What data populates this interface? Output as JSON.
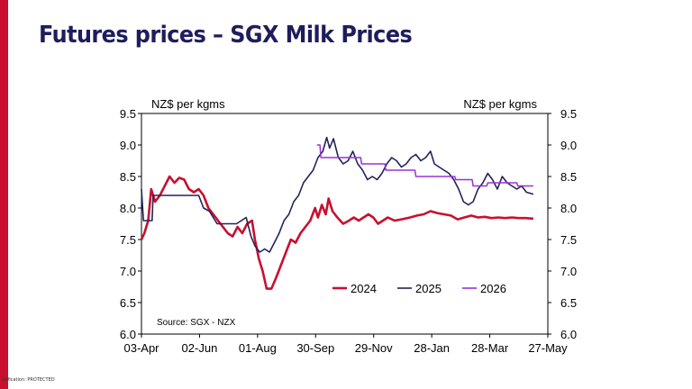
{
  "slide": {
    "title": "Futures prices – SGX Milk Prices",
    "classification": "ssification: PROTECTED"
  },
  "colors": {
    "accent": "#c8102e",
    "title": "#1f1d5c",
    "series_2024": "#c8102e",
    "series_2025": "#23235a",
    "series_2026": "#9b30d9"
  },
  "chart_data": {
    "type": "line",
    "y_left_label": "NZ$ per kgms",
    "y_right_label": "NZ$ per kgms",
    "ylim": [
      6.0,
      9.5
    ],
    "y_ticks": [
      "6.0",
      "6.5",
      "7.0",
      "7.5",
      "8.0",
      "8.5",
      "9.0",
      "9.5"
    ],
    "x_ticks": [
      "03-Apr",
      "02-Jun",
      "01-Aug",
      "30-Sep",
      "29-Nov",
      "28-Jan",
      "28-Mar",
      "27-May"
    ],
    "x_range": [
      "2024-04-03",
      "2025-05-27"
    ],
    "source": "Source: SGX - NZX",
    "legend_position": "bottom-right",
    "grid": false,
    "series": [
      {
        "name": "2024",
        "color": "#c8102e",
        "points": [
          [
            "2024-04-03",
            7.5
          ],
          [
            "2024-04-06",
            7.6
          ],
          [
            "2024-04-10",
            7.8
          ],
          [
            "2024-04-13",
            8.3
          ],
          [
            "2024-04-17",
            8.1
          ],
          [
            "2024-04-22",
            8.2
          ],
          [
            "2024-04-27",
            8.35
          ],
          [
            "2024-05-02",
            8.5
          ],
          [
            "2024-05-07",
            8.4
          ],
          [
            "2024-05-12",
            8.48
          ],
          [
            "2024-05-17",
            8.45
          ],
          [
            "2024-05-22",
            8.3
          ],
          [
            "2024-05-27",
            8.25
          ],
          [
            "2024-06-01",
            8.3
          ],
          [
            "2024-06-06",
            8.2
          ],
          [
            "2024-06-11",
            8.0
          ],
          [
            "2024-06-16",
            7.9
          ],
          [
            "2024-06-21",
            7.8
          ],
          [
            "2024-06-26",
            7.7
          ],
          [
            "2024-07-01",
            7.6
          ],
          [
            "2024-07-06",
            7.55
          ],
          [
            "2024-07-11",
            7.7
          ],
          [
            "2024-07-16",
            7.6
          ],
          [
            "2024-07-21",
            7.75
          ],
          [
            "2024-07-26",
            7.8
          ],
          [
            "2024-07-29",
            7.5
          ],
          [
            "2024-08-02",
            7.2
          ],
          [
            "2024-08-06",
            7.0
          ],
          [
            "2024-08-10",
            6.72
          ],
          [
            "2024-08-15",
            6.72
          ],
          [
            "2024-08-20",
            6.9
          ],
          [
            "2024-08-25",
            7.1
          ],
          [
            "2024-08-30",
            7.3
          ],
          [
            "2024-09-04",
            7.5
          ],
          [
            "2024-09-09",
            7.45
          ],
          [
            "2024-09-14",
            7.6
          ],
          [
            "2024-09-19",
            7.7
          ],
          [
            "2024-09-24",
            7.8
          ],
          [
            "2024-09-29",
            8.0
          ],
          [
            "2024-10-02",
            7.85
          ],
          [
            "2024-10-06",
            8.05
          ],
          [
            "2024-10-10",
            7.9
          ],
          [
            "2024-10-13",
            8.15
          ],
          [
            "2024-10-17",
            7.95
          ],
          [
            "2024-10-22",
            7.85
          ],
          [
            "2024-10-28",
            7.75
          ],
          [
            "2024-11-03",
            7.8
          ],
          [
            "2024-11-08",
            7.85
          ],
          [
            "2024-11-13",
            7.8
          ],
          [
            "2024-11-18",
            7.85
          ],
          [
            "2024-11-23",
            7.9
          ],
          [
            "2024-11-28",
            7.85
          ],
          [
            "2024-12-03",
            7.75
          ],
          [
            "2024-12-08",
            7.8
          ],
          [
            "2024-12-13",
            7.85
          ],
          [
            "2024-12-20",
            7.8
          ],
          [
            "2024-12-27",
            7.82
          ],
          [
            "2025-01-05",
            7.85
          ],
          [
            "2025-01-12",
            7.88
          ],
          [
            "2025-01-19",
            7.9
          ],
          [
            "2025-01-26",
            7.95
          ],
          [
            "2025-02-02",
            7.92
          ],
          [
            "2025-02-09",
            7.9
          ],
          [
            "2025-02-16",
            7.88
          ],
          [
            "2025-02-23",
            7.82
          ],
          [
            "2025-03-02",
            7.85
          ],
          [
            "2025-03-09",
            7.88
          ],
          [
            "2025-03-16",
            7.85
          ],
          [
            "2025-03-23",
            7.86
          ],
          [
            "2025-03-30",
            7.84
          ],
          [
            "2025-04-06",
            7.85
          ],
          [
            "2025-04-13",
            7.84
          ],
          [
            "2025-04-20",
            7.85
          ],
          [
            "2025-04-27",
            7.84
          ],
          [
            "2025-05-05",
            7.84
          ],
          [
            "2025-05-12",
            7.83
          ]
        ]
      },
      {
        "name": "2025",
        "color": "#23235a",
        "points": [
          [
            "2024-04-03",
            8.3
          ],
          [
            "2024-04-05",
            7.8
          ],
          [
            "2024-04-14",
            7.8
          ],
          [
            "2024-04-15",
            8.2
          ],
          [
            "2024-05-10",
            8.2
          ],
          [
            "2024-06-01",
            8.2
          ],
          [
            "2024-06-06",
            8.0
          ],
          [
            "2024-06-12",
            7.95
          ],
          [
            "2024-06-20",
            7.75
          ],
          [
            "2024-07-10",
            7.75
          ],
          [
            "2024-07-15",
            7.8
          ],
          [
            "2024-07-20",
            7.85
          ],
          [
            "2024-07-25",
            7.55
          ],
          [
            "2024-07-29",
            7.4
          ],
          [
            "2024-08-03",
            7.3
          ],
          [
            "2024-08-08",
            7.35
          ],
          [
            "2024-08-13",
            7.3
          ],
          [
            "2024-08-18",
            7.45
          ],
          [
            "2024-08-23",
            7.6
          ],
          [
            "2024-08-28",
            7.8
          ],
          [
            "2024-09-02",
            7.9
          ],
          [
            "2024-09-07",
            8.1
          ],
          [
            "2024-09-12",
            8.2
          ],
          [
            "2024-09-17",
            8.4
          ],
          [
            "2024-09-22",
            8.5
          ],
          [
            "2024-09-27",
            8.6
          ],
          [
            "2024-10-02",
            8.8
          ],
          [
            "2024-10-07",
            8.9
          ],
          [
            "2024-10-11",
            9.12
          ],
          [
            "2024-10-14",
            8.95
          ],
          [
            "2024-10-18",
            9.1
          ],
          [
            "2024-10-23",
            8.8
          ],
          [
            "2024-10-28",
            8.7
          ],
          [
            "2024-11-02",
            8.75
          ],
          [
            "2024-11-07",
            8.9
          ],
          [
            "2024-11-12",
            8.7
          ],
          [
            "2024-11-17",
            8.6
          ],
          [
            "2024-11-22",
            8.45
          ],
          [
            "2024-11-27",
            8.5
          ],
          [
            "2024-12-02",
            8.45
          ],
          [
            "2024-12-07",
            8.55
          ],
          [
            "2024-12-12",
            8.7
          ],
          [
            "2024-12-17",
            8.8
          ],
          [
            "2024-12-22",
            8.75
          ],
          [
            "2024-12-27",
            8.65
          ],
          [
            "2025-01-01",
            8.7
          ],
          [
            "2025-01-06",
            8.8
          ],
          [
            "2025-01-11",
            8.85
          ],
          [
            "2025-01-16",
            8.75
          ],
          [
            "2025-01-21",
            8.8
          ],
          [
            "2025-01-26",
            8.9
          ],
          [
            "2025-01-30",
            8.7
          ],
          [
            "2025-02-04",
            8.65
          ],
          [
            "2025-02-09",
            8.6
          ],
          [
            "2025-02-14",
            8.55
          ],
          [
            "2025-02-19",
            8.45
          ],
          [
            "2025-02-24",
            8.3
          ],
          [
            "2025-03-01",
            8.1
          ],
          [
            "2025-03-06",
            8.05
          ],
          [
            "2025-03-11",
            8.1
          ],
          [
            "2025-03-16",
            8.3
          ],
          [
            "2025-03-21",
            8.4
          ],
          [
            "2025-03-26",
            8.55
          ],
          [
            "2025-03-31",
            8.45
          ],
          [
            "2025-04-05",
            8.3
          ],
          [
            "2025-04-10",
            8.5
          ],
          [
            "2025-04-15",
            8.4
          ],
          [
            "2025-04-20",
            8.35
          ],
          [
            "2025-04-25",
            8.3
          ],
          [
            "2025-04-30",
            8.35
          ],
          [
            "2025-05-05",
            8.25
          ],
          [
            "2025-05-12",
            8.22
          ]
        ]
      },
      {
        "name": "2026",
        "color": "#9b30d9",
        "points": [
          [
            "2024-10-01",
            9.0
          ],
          [
            "2024-10-04",
            9.0
          ],
          [
            "2024-10-05",
            8.8
          ],
          [
            "2024-11-15",
            8.8
          ],
          [
            "2024-11-16",
            8.7
          ],
          [
            "2024-12-10",
            8.7
          ],
          [
            "2024-12-11",
            8.6
          ],
          [
            "2025-01-10",
            8.6
          ],
          [
            "2025-01-11",
            8.5
          ],
          [
            "2025-02-20",
            8.5
          ],
          [
            "2025-02-21",
            8.45
          ],
          [
            "2025-03-10",
            8.45
          ],
          [
            "2025-03-11",
            8.35
          ],
          [
            "2025-03-25",
            8.35
          ],
          [
            "2025-03-26",
            8.4
          ],
          [
            "2025-04-25",
            8.4
          ],
          [
            "2025-04-26",
            8.35
          ],
          [
            "2025-05-12",
            8.35
          ]
        ]
      }
    ]
  }
}
